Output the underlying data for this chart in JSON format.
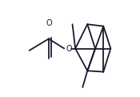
{
  "bg_color": "#ffffff",
  "line_color": "#1a1a2e",
  "line_width": 1.3,
  "figsize": [
    1.75,
    1.21
  ],
  "dpi": 100,
  "acetate_lines": [
    [
      [
        0.08,
        0.48
      ],
      [
        0.28,
        0.6
      ]
    ],
    [
      [
        0.28,
        0.6
      ],
      [
        0.28,
        0.4
      ]
    ],
    [
      [
        0.28,
        0.6
      ],
      [
        0.44,
        0.5
      ]
    ],
    [
      [
        0.305,
        0.61
      ],
      [
        0.305,
        0.41
      ]
    ]
  ],
  "carbonyl_O": [
    0.28,
    0.76
  ],
  "ether_O": [
    0.49,
    0.5
  ],
  "cage_lines": [
    [
      [
        0.555,
        0.5
      ],
      [
        0.68,
        0.75
      ]
    ],
    [
      [
        0.555,
        0.5
      ],
      [
        0.68,
        0.27
      ]
    ],
    [
      [
        0.555,
        0.5
      ],
      [
        0.76,
        0.5
      ]
    ],
    [
      [
        0.68,
        0.75
      ],
      [
        0.845,
        0.73
      ]
    ],
    [
      [
        0.68,
        0.75
      ],
      [
        0.76,
        0.5
      ]
    ],
    [
      [
        0.68,
        0.27
      ],
      [
        0.845,
        0.73
      ]
    ],
    [
      [
        0.68,
        0.27
      ],
      [
        0.76,
        0.5
      ]
    ],
    [
      [
        0.845,
        0.73
      ],
      [
        0.92,
        0.5
      ]
    ],
    [
      [
        0.76,
        0.5
      ],
      [
        0.92,
        0.5
      ]
    ],
    [
      [
        0.68,
        0.27
      ],
      [
        0.845,
        0.26
      ]
    ],
    [
      [
        0.845,
        0.26
      ],
      [
        0.92,
        0.5
      ]
    ],
    [
      [
        0.845,
        0.73
      ],
      [
        0.845,
        0.26
      ]
    ]
  ],
  "methyl_lines": [
    [
      [
        0.555,
        0.5
      ],
      [
        0.525,
        0.75
      ]
    ],
    [
      [
        0.68,
        0.27
      ],
      [
        0.63,
        0.1
      ]
    ]
  ],
  "O_label": "O",
  "O_fontsize": 7,
  "O_color": "#1a1a2e"
}
